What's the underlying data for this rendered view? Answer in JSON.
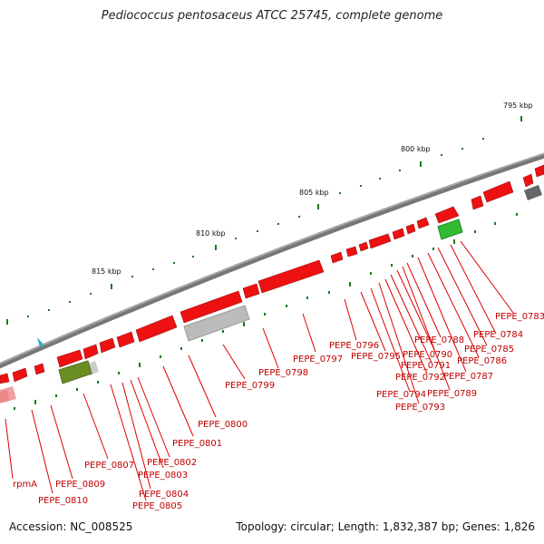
{
  "title": "Pediococcus pentosaceus ATCC 25745, complete genome",
  "footer": {
    "accession": "Accession: NC_008525",
    "summary": "Topology: circular; Length: 1,832,387 bp; Genes: 1,826"
  },
  "scale_labels": [
    "795 kbp",
    "800 kbp",
    "805 kbp",
    "810 kbp",
    "815 kbp"
  ],
  "gene_labels": [
    "PEPE_0783",
    "PEPE_0784",
    "PEPE_0785",
    "PEPE_0786",
    "PEPE_0787",
    "PEPE_0788",
    "PEPE_0789",
    "PEPE_0790",
    "PEPE_0791",
    "PEPE_0792",
    "PEPE_0793",
    "PEPE_0794",
    "PEPE_0795",
    "PEPE_0796",
    "PEPE_0797",
    "PEPE_0798",
    "PEPE_0799",
    "PEPE_0800",
    "PEPE_0801",
    "PEPE_0802",
    "PEPE_0803",
    "PEPE_0804",
    "PEPE_0805",
    "PEPE_0807",
    "PEPE_0809",
    "PEPE_0810",
    "rpmA"
  ],
  "colors": {
    "backbone": "#777777",
    "gene_fwd": "#ee1111",
    "gene_label": "#c00000",
    "tick": "#1a7a1a",
    "rrna": "#aaaaaa",
    "trna_green": "#33bb33"
  }
}
